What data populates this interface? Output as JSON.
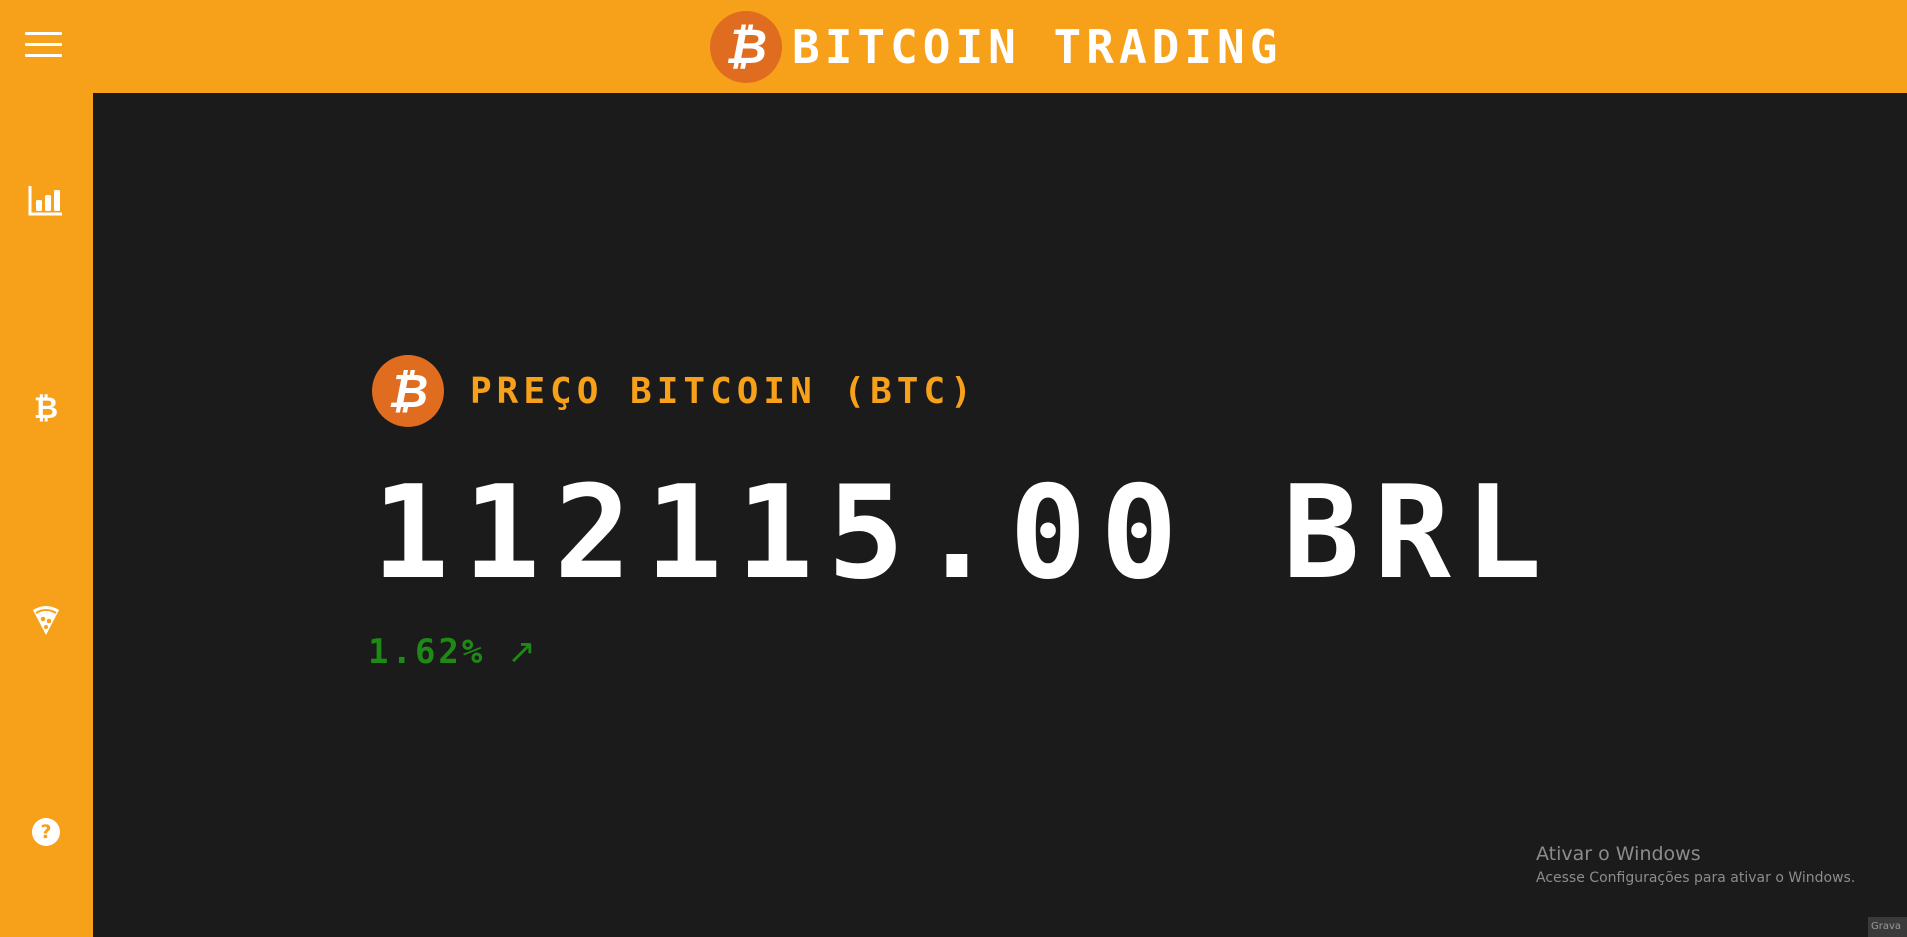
{
  "header": {
    "logo_symbol": "₿",
    "title": "BITCOIN TRADING",
    "menu_icon": "hamburger-menu-icon"
  },
  "sidebar": {
    "items": [
      {
        "icon": "bar-chart-icon"
      },
      {
        "icon": "bitcoin-icon",
        "symbol": "₿"
      },
      {
        "icon": "pizza-icon"
      },
      {
        "icon": "help-icon",
        "symbol": "?"
      }
    ]
  },
  "price": {
    "coin_symbol": "₿",
    "label": "PREÇO BITCOIN (BTC)",
    "value": "112115.00 BRL",
    "change": "1.62%",
    "change_arrow": "↗"
  },
  "watermark": {
    "title": "Ativar o Windows",
    "subtitle": "Acesse Configurações para ativar o Windows."
  },
  "corner_tag": "Grava",
  "colors": {
    "accent": "#f7a01a",
    "coin": "#e06d1f",
    "background": "#1b1b1b",
    "positive": "#1e8a16"
  }
}
